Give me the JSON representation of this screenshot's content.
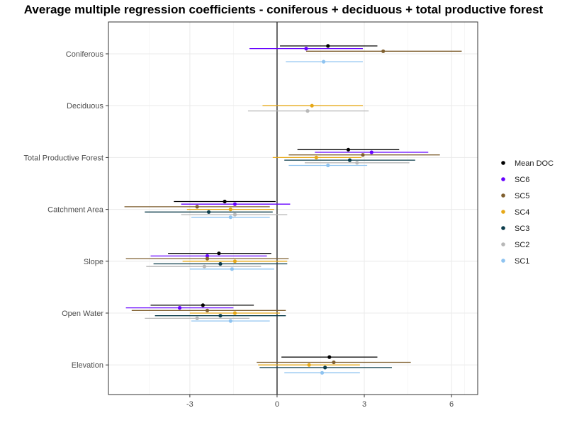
{
  "chart_data": {
    "type": "forest",
    "title": "Average multiple regression coefficients - coniferous + deciduous + total productive forest",
    "xlabel": "",
    "ylabel": "",
    "xlim": [
      -5.8,
      6.9
    ],
    "xticks": [
      -3,
      0,
      3,
      6
    ],
    "xtick_labels": [
      "-3",
      "0",
      "3",
      "6"
    ],
    "reference_line": 0,
    "grid": true,
    "legend_position": "right",
    "categories": [
      "Coniferous",
      "Deciduous",
      "Total Productive Forest",
      "Catchment Area",
      "Slope",
      "Open Water",
      "Elevation"
    ],
    "series": [
      {
        "name": "Mean DOC",
        "color": "#000000",
        "points": [
          {
            "category": "Coniferous",
            "estimate": 1.75,
            "low": 0.1,
            "high": 3.45
          },
          {
            "category": "Total Productive Forest",
            "estimate": 2.45,
            "low": 0.7,
            "high": 4.2
          },
          {
            "category": "Catchment Area",
            "estimate": -1.8,
            "low": -3.55,
            "high": -0.05
          },
          {
            "category": "Slope",
            "estimate": -2.0,
            "low": -3.75,
            "high": -0.2
          },
          {
            "category": "Open Water",
            "estimate": -2.55,
            "low": -4.35,
            "high": -0.8
          },
          {
            "category": "Elevation",
            "estimate": 1.8,
            "low": 0.15,
            "high": 3.45
          }
        ]
      },
      {
        "name": "SC6",
        "color": "#6600ff",
        "points": [
          {
            "category": "Coniferous",
            "estimate": 1.0,
            "low": -0.95,
            "high": 2.95
          },
          {
            "category": "Total Productive Forest",
            "estimate": 3.25,
            "low": 1.3,
            "high": 5.2
          },
          {
            "category": "Catchment Area",
            "estimate": -1.45,
            "low": -3.3,
            "high": 0.45
          },
          {
            "category": "Slope",
            "estimate": -2.4,
            "low": -4.35,
            "high": -0.35
          },
          {
            "category": "Open Water",
            "estimate": -3.35,
            "low": -5.2,
            "high": -1.5
          }
        ]
      },
      {
        "name": "SC5",
        "color": "#7f5f2f",
        "points": [
          {
            "category": "Coniferous",
            "estimate": 3.65,
            "low": 1.0,
            "high": 6.35
          },
          {
            "category": "Total Productive Forest",
            "estimate": 2.95,
            "low": 0.4,
            "high": 5.6
          },
          {
            "category": "Catchment Area",
            "estimate": -2.75,
            "low": -5.25,
            "high": -0.25
          },
          {
            "category": "Slope",
            "estimate": -2.4,
            "low": -5.2,
            "high": 0.4
          },
          {
            "category": "Open Water",
            "estimate": -2.4,
            "low": -5.0,
            "high": 0.3
          },
          {
            "category": "Elevation",
            "estimate": 1.95,
            "low": -0.7,
            "high": 4.6
          }
        ]
      },
      {
        "name": "SC4",
        "color": "#e6a817",
        "points": [
          {
            "category": "Deciduous",
            "estimate": 1.2,
            "low": -0.5,
            "high": 2.95
          },
          {
            "category": "Total Productive Forest",
            "estimate": 1.35,
            "low": -0.15,
            "high": 2.9
          },
          {
            "category": "Catchment Area",
            "estimate": -1.6,
            "low": -3.1,
            "high": -0.1
          },
          {
            "category": "Slope",
            "estimate": -1.45,
            "low": -3.25,
            "high": 0.35
          },
          {
            "category": "Open Water",
            "estimate": -1.45,
            "low": -3.0,
            "high": 0.1
          },
          {
            "category": "Elevation",
            "estimate": 1.1,
            "low": -0.65,
            "high": 2.85
          }
        ]
      },
      {
        "name": "SC3",
        "color": "#0a3b4a",
        "points": [
          {
            "category": "Total Productive Forest",
            "estimate": 2.5,
            "low": 0.25,
            "high": 4.75
          },
          {
            "category": "Catchment Area",
            "estimate": -2.35,
            "low": -4.55,
            "high": -0.15
          },
          {
            "category": "Slope",
            "estimate": -1.95,
            "low": -4.25,
            "high": 0.35
          },
          {
            "category": "Open Water",
            "estimate": -1.95,
            "low": -4.2,
            "high": 0.3
          },
          {
            "category": "Elevation",
            "estimate": 1.65,
            "low": -0.6,
            "high": 3.95
          }
        ]
      },
      {
        "name": "SC2",
        "color": "#b8b8b8",
        "points": [
          {
            "category": "Deciduous",
            "estimate": 1.05,
            "low": -1.0,
            "high": 3.15
          },
          {
            "category": "Total Productive Forest",
            "estimate": 2.75,
            "low": 0.95,
            "high": 4.55
          },
          {
            "category": "Catchment Area",
            "estimate": -1.45,
            "low": -3.3,
            "high": 0.35
          },
          {
            "category": "Slope",
            "estimate": -2.5,
            "low": -4.5,
            "high": -0.55
          },
          {
            "category": "Open Water",
            "estimate": -2.75,
            "low": -4.55,
            "high": -0.95
          }
        ]
      },
      {
        "name": "SC1",
        "color": "#8ec3f0",
        "points": [
          {
            "category": "Coniferous",
            "estimate": 1.6,
            "low": 0.3,
            "high": 2.95
          },
          {
            "category": "Total Productive Forest",
            "estimate": 1.75,
            "low": 0.4,
            "high": 3.1
          },
          {
            "category": "Catchment Area",
            "estimate": -1.6,
            "low": -2.95,
            "high": -0.25
          },
          {
            "category": "Slope",
            "estimate": -1.55,
            "low": -3.0,
            "high": -0.1
          },
          {
            "category": "Open Water",
            "estimate": -1.6,
            "low": -2.95,
            "high": -0.25
          },
          {
            "category": "Elevation",
            "estimate": 1.55,
            "low": 0.25,
            "high": 2.85
          }
        ]
      }
    ]
  }
}
